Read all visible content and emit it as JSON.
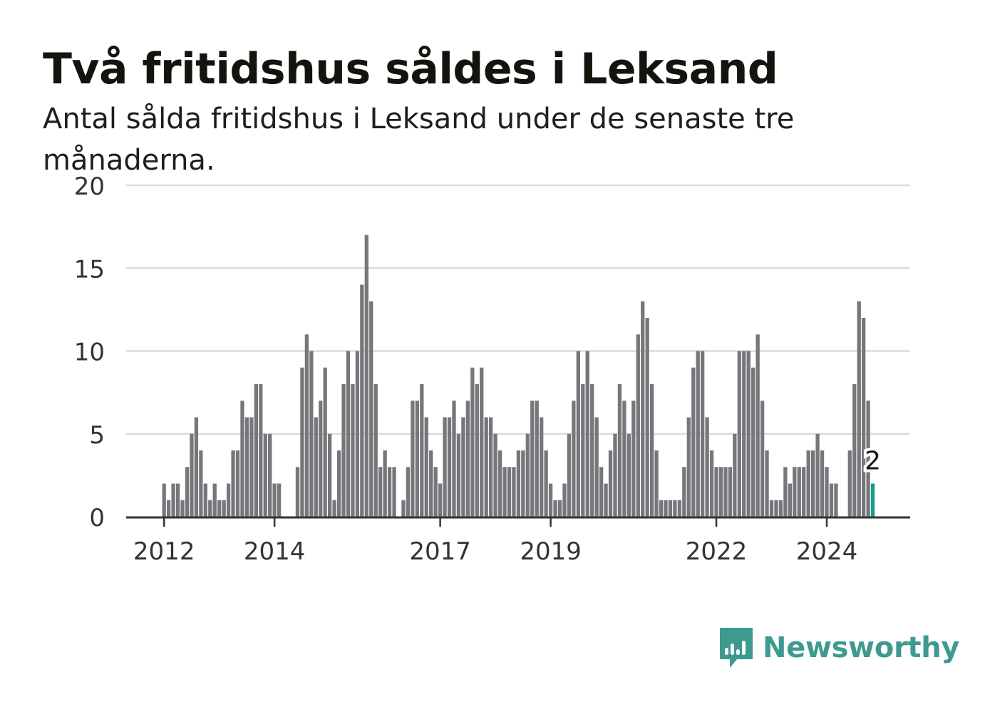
{
  "title": "Två fritidshus såldes i Leksand",
  "subtitle": "Antal sålda fritidshus i Leksand under de senaste tre månaderna.",
  "brand": {
    "name": "Newsworthy",
    "icon": "newsworthy-logo-icon",
    "color": "#3e9a91"
  },
  "colors": {
    "bar": "#77767b",
    "highlight": "#1a9a8f",
    "grid": "#dcdcdc",
    "axis": "#333333"
  },
  "chart_data": {
    "type": "bar",
    "title": "Två fritidshus såldes i Leksand",
    "subtitle": "Antal sålda fritidshus i Leksand under de senaste tre månaderna.",
    "xlabel": "",
    "ylabel": "",
    "ylim": [
      0,
      20
    ],
    "yticks": [
      0,
      5,
      10,
      15,
      20
    ],
    "grid": true,
    "x_axis_labels": [
      "2012",
      "2014",
      "2017",
      "2019",
      "2022",
      "2024"
    ],
    "x_axis_label_positions": [
      0,
      24,
      60,
      84,
      120,
      144
    ],
    "highlight_index": 154,
    "highlight_label": "2",
    "values": [
      2,
      1,
      2,
      2,
      1,
      3,
      5,
      6,
      4,
      2,
      1,
      2,
      1,
      1,
      2,
      4,
      4,
      7,
      6,
      6,
      8,
      8,
      5,
      5,
      2,
      2,
      0,
      0,
      0,
      3,
      9,
      11,
      10,
      6,
      7,
      9,
      5,
      1,
      4,
      8,
      10,
      8,
      10,
      14,
      17,
      13,
      8,
      3,
      4,
      3,
      3,
      0,
      1,
      3,
      7,
      7,
      8,
      6,
      4,
      3,
      2,
      6,
      6,
      7,
      5,
      6,
      7,
      9,
      8,
      9,
      6,
      6,
      5,
      4,
      3,
      3,
      3,
      4,
      4,
      5,
      7,
      7,
      6,
      4,
      2,
      1,
      1,
      2,
      5,
      7,
      10,
      8,
      10,
      8,
      6,
      3,
      2,
      4,
      5,
      8,
      7,
      5,
      7,
      11,
      13,
      12,
      8,
      4,
      1,
      1,
      1,
      1,
      1,
      3,
      6,
      9,
      10,
      10,
      6,
      4,
      3,
      3,
      3,
      3,
      5,
      10,
      10,
      10,
      9,
      11,
      7,
      4,
      1,
      1,
      1,
      3,
      2,
      3,
      3,
      3,
      4,
      4,
      5,
      4,
      3,
      2,
      2,
      0,
      0,
      4,
      8,
      13,
      12,
      7,
      2
    ]
  }
}
